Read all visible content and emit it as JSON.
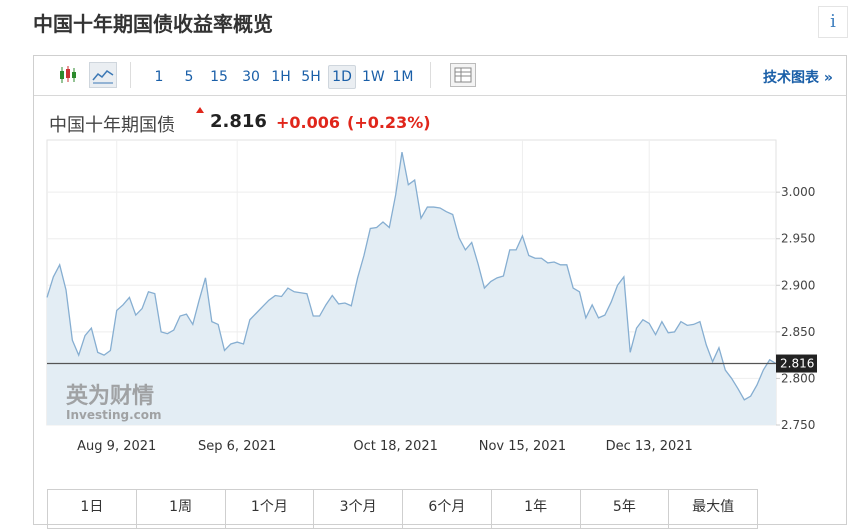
{
  "header": {
    "title": "中国十年期国债收益率概览",
    "info": "i"
  },
  "toolbar": {
    "intervals": [
      "1",
      "5",
      "15",
      "30",
      "1H",
      "5H",
      "1D",
      "1W",
      "1M"
    ],
    "link": "技术图表 »"
  },
  "quote": {
    "name": "中国十年期国债",
    "price": "2.816",
    "change": "+0.006",
    "change_pct": "(+0.23%)"
  },
  "watermark": {
    "cn": "英为财情",
    "en": "Investing.com"
  },
  "range_tabs": [
    "1日",
    "1周",
    "1个月",
    "3个月",
    "6个月",
    "1年",
    "5年",
    "最大值"
  ],
  "chart_data": {
    "type": "area",
    "color": "#86aed1",
    "fill_color": "#e3edf4",
    "grid": true,
    "categories": [
      null,
      null,
      null,
      null,
      null,
      null,
      null,
      null,
      null,
      null,
      null,
      "Aug 9, 2021",
      null,
      null,
      null,
      null,
      null,
      null,
      null,
      null,
      null,
      null,
      null,
      null,
      null,
      null,
      null,
      null,
      null,
      null,
      "Sep 6, 2021",
      null,
      null,
      null,
      null,
      null,
      null,
      null,
      null,
      null,
      null,
      null,
      null,
      null,
      null,
      null,
      null,
      null,
      null,
      null,
      null,
      null,
      null,
      null,
      null,
      "Oct 18, 2021",
      null,
      null,
      null,
      null,
      null,
      null,
      null,
      null,
      null,
      null,
      null,
      null,
      null,
      null,
      null,
      null,
      null,
      null,
      null,
      "Nov 15, 2021",
      null,
      null,
      null,
      null,
      null,
      null,
      null,
      null,
      null,
      null,
      null,
      null,
      null,
      null,
      null,
      null,
      null,
      null,
      null,
      "Dec 13, 2021",
      null,
      null,
      null,
      null,
      null,
      null,
      null,
      null,
      null,
      null,
      null,
      null,
      null,
      null,
      null,
      null,
      null,
      null,
      null,
      null
    ],
    "values": [
      2.887,
      2.909,
      2.922,
      2.895,
      2.841,
      2.825,
      2.846,
      2.854,
      2.828,
      2.825,
      2.83,
      2.873,
      2.879,
      2.887,
      2.868,
      2.875,
      2.893,
      2.891,
      2.85,
      2.848,
      2.852,
      2.867,
      2.869,
      2.858,
      2.884,
      2.908,
      2.861,
      2.858,
      2.83,
      2.837,
      2.839,
      2.837,
      2.863,
      2.87,
      2.877,
      2.884,
      2.889,
      2.888,
      2.897,
      2.893,
      2.892,
      2.891,
      2.867,
      2.867,
      2.879,
      2.889,
      2.88,
      2.881,
      2.878,
      2.908,
      2.932,
      2.961,
      2.962,
      2.968,
      2.962,
      2.997,
      3.043,
      3.008,
      3.013,
      2.972,
      2.984,
      2.984,
      2.983,
      2.979,
      2.976,
      2.951,
      2.938,
      2.946,
      2.923,
      2.897,
      2.904,
      2.908,
      2.91,
      2.938,
      2.938,
      2.953,
      2.932,
      2.929,
      2.929,
      2.924,
      2.925,
      2.922,
      2.922,
      2.897,
      2.893,
      2.865,
      2.879,
      2.865,
      2.868,
      2.882,
      2.9,
      2.909,
      2.828,
      2.854,
      2.863,
      2.859,
      2.847,
      2.861,
      2.849,
      2.85,
      2.861,
      2.857,
      2.858,
      2.861,
      2.836,
      2.818,
      2.833,
      2.809,
      2.8,
      2.789,
      2.777,
      2.781,
      2.793,
      2.809,
      2.82,
      2.816
    ],
    "ylim": [
      2.75,
      3.056
    ],
    "yticks": [
      {
        "value": 2.75,
        "label": "2.750"
      },
      {
        "value": 2.8,
        "label": "2.800"
      },
      {
        "value": 2.85,
        "label": "2.850"
      },
      {
        "value": 2.9,
        "label": "2.900"
      },
      {
        "value": 2.95,
        "label": "2.950"
      },
      {
        "value": 3.0,
        "label": "3.000"
      }
    ]
  }
}
